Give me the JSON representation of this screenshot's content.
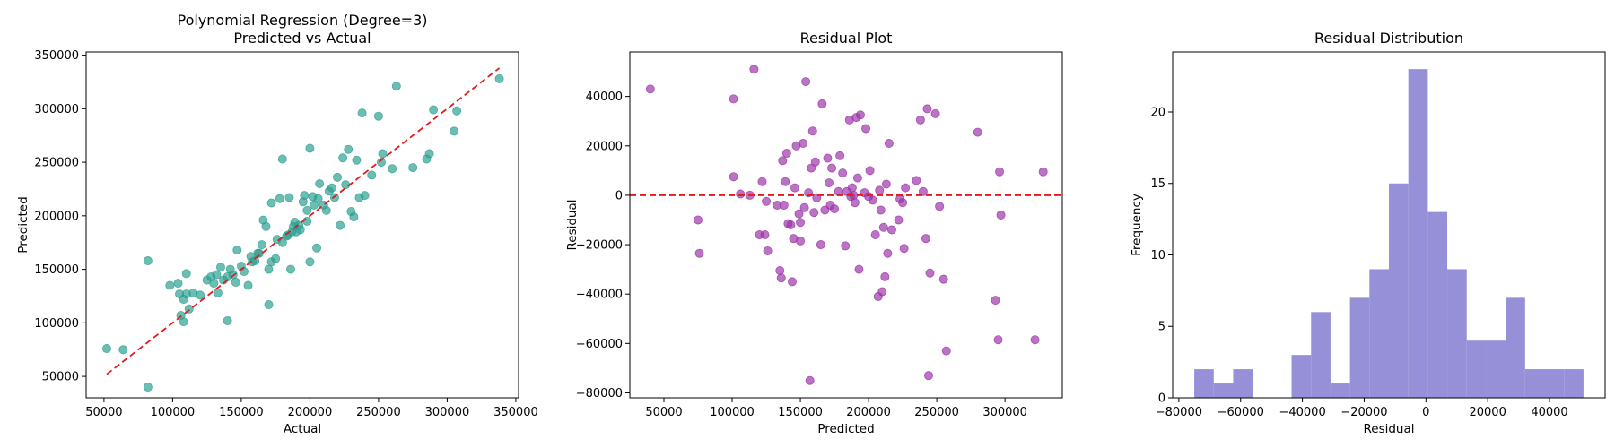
{
  "chart_data": [
    {
      "type": "scatter",
      "title": "Polynomial Regression (Degree=3)\nPredicted vs Actual",
      "xlabel": "Actual",
      "ylabel": "Predicted",
      "xlim": [
        37000,
        352000
      ],
      "ylim": [
        30000,
        353000
      ],
      "xticks": [
        50000,
        100000,
        150000,
        200000,
        250000,
        300000,
        350000
      ],
      "yticks": [
        50000,
        100000,
        150000,
        200000,
        250000,
        300000,
        350000
      ],
      "point_color": "#2a9d8f",
      "line_color": "#e31a1c",
      "reference_line": {
        "x": [
          52000,
          338000
        ],
        "y": [
          52000,
          338000
        ]
      },
      "points": [
        [
          52000,
          76000
        ],
        [
          64000,
          75000
        ],
        [
          82000,
          40000
        ],
        [
          82000,
          158000
        ],
        [
          98000,
          135000
        ],
        [
          104000,
          137000
        ],
        [
          105000,
          127000
        ],
        [
          106000,
          107000
        ],
        [
          108000,
          122000
        ],
        [
          108000,
          101000
        ],
        [
          110000,
          146000
        ],
        [
          110000,
          127000
        ],
        [
          112000,
          113000
        ],
        [
          115000,
          128000
        ],
        [
          120000,
          126000
        ],
        [
          125000,
          140000
        ],
        [
          128000,
          143000
        ],
        [
          130000,
          137000
        ],
        [
          132000,
          145000
        ],
        [
          133000,
          128000
        ],
        [
          135000,
          152000
        ],
        [
          137000,
          140000
        ],
        [
          140000,
          143000
        ],
        [
          140000,
          102000
        ],
        [
          142000,
          150000
        ],
        [
          144000,
          145000
        ],
        [
          146000,
          138000
        ],
        [
          147000,
          168000
        ],
        [
          150000,
          153000
        ],
        [
          152000,
          148000
        ],
        [
          155000,
          135000
        ],
        [
          157000,
          162000
        ],
        [
          158000,
          157000
        ],
        [
          160000,
          158000
        ],
        [
          162000,
          165000
        ],
        [
          163000,
          165000
        ],
        [
          165000,
          173000
        ],
        [
          166000,
          196000
        ],
        [
          168000,
          190000
        ],
        [
          170000,
          117000
        ],
        [
          170000,
          150000
        ],
        [
          172000,
          157000
        ],
        [
          172000,
          212000
        ],
        [
          175000,
          160000
        ],
        [
          176000,
          178000
        ],
        [
          178000,
          216000
        ],
        [
          180000,
          253000
        ],
        [
          180000,
          175000
        ],
        [
          183000,
          181000
        ],
        [
          184000,
          182000
        ],
        [
          185000,
          217000
        ],
        [
          186000,
          150000
        ],
        [
          187000,
          185000
        ],
        [
          188000,
          190000
        ],
        [
          189000,
          194000
        ],
        [
          190000,
          185000
        ],
        [
          192000,
          191000
        ],
        [
          193000,
          187000
        ],
        [
          195000,
          213000
        ],
        [
          196000,
          219000
        ],
        [
          198000,
          195000
        ],
        [
          198000,
          205000
        ],
        [
          200000,
          263000
        ],
        [
          200000,
          157000
        ],
        [
          202000,
          218000
        ],
        [
          203000,
          210000
        ],
        [
          205000,
          170000
        ],
        [
          206000,
          216000
        ],
        [
          207000,
          230000
        ],
        [
          210000,
          210000
        ],
        [
          212000,
          205000
        ],
        [
          214000,
          223000
        ],
        [
          216000,
          226000
        ],
        [
          218000,
          217000
        ],
        [
          220000,
          236000
        ],
        [
          222000,
          191000
        ],
        [
          224000,
          254000
        ],
        [
          226000,
          229000
        ],
        [
          228000,
          262000
        ],
        [
          230000,
          204000
        ],
        [
          232000,
          199000
        ],
        [
          234000,
          252000
        ],
        [
          236000,
          217000
        ],
        [
          238000,
          296000
        ],
        [
          240000,
          219000
        ],
        [
          245000,
          238000
        ],
        [
          250000,
          293000
        ],
        [
          252000,
          250000
        ],
        [
          253000,
          258000
        ],
        [
          260000,
          244000
        ],
        [
          263000,
          321000
        ],
        [
          275000,
          245000
        ],
        [
          285000,
          253000
        ],
        [
          287000,
          258000
        ],
        [
          290000,
          299000
        ],
        [
          305000,
          279000
        ],
        [
          307000,
          298000
        ],
        [
          338000,
          328000
        ]
      ]
    },
    {
      "type": "scatter",
      "title": "Residual Plot",
      "xlabel": "Predicted",
      "ylabel": "Residual",
      "xlim": [
        25000,
        342000
      ],
      "ylim": [
        -82000,
        58000
      ],
      "xticks": [
        50000,
        100000,
        150000,
        200000,
        250000,
        300000
      ],
      "yticks": [
        -80000,
        -60000,
        -40000,
        -20000,
        0,
        20000,
        40000
      ],
      "point_color": "#9b30a8",
      "line_color": "#e31a1c",
      "reference_line": {
        "y": 0
      },
      "points": [
        [
          40000,
          43000
        ],
        [
          75000,
          -10000
        ],
        [
          76000,
          -23500
        ],
        [
          101000,
          7500
        ],
        [
          101000,
          39000
        ],
        [
          106000,
          500
        ],
        [
          113000,
          0
        ],
        [
          116000,
          51000
        ],
        [
          120000,
          -16000
        ],
        [
          122000,
          5500
        ],
        [
          124000,
          -16000
        ],
        [
          125000,
          -2500
        ],
        [
          126000,
          -22500
        ],
        [
          133000,
          -4000
        ],
        [
          135000,
          -30500
        ],
        [
          136000,
          -33500
        ],
        [
          137000,
          14000
        ],
        [
          138000,
          -4000
        ],
        [
          139000,
          5500
        ],
        [
          140000,
          17000
        ],
        [
          141000,
          -11500
        ],
        [
          143000,
          -12000
        ],
        [
          144000,
          -35000
        ],
        [
          145000,
          -17500
        ],
        [
          146000,
          3000
        ],
        [
          147000,
          20000
        ],
        [
          149000,
          -7500
        ],
        [
          150000,
          -11000
        ],
        [
          150000,
          -18500
        ],
        [
          152000,
          21000
        ],
        [
          153000,
          -5000
        ],
        [
          154000,
          46000
        ],
        [
          156000,
          1000
        ],
        [
          157000,
          -75000
        ],
        [
          158000,
          11000
        ],
        [
          159000,
          26000
        ],
        [
          160000,
          -7000
        ],
        [
          161000,
          13500
        ],
        [
          162000,
          -1000
        ],
        [
          165000,
          -20000
        ],
        [
          166000,
          37000
        ],
        [
          168000,
          -6000
        ],
        [
          170000,
          15000
        ],
        [
          171000,
          5000
        ],
        [
          172000,
          -4000
        ],
        [
          173000,
          11000
        ],
        [
          175000,
          -5500
        ],
        [
          178000,
          1500
        ],
        [
          179000,
          16000
        ],
        [
          181000,
          9000
        ],
        [
          183000,
          -20500
        ],
        [
          184000,
          1500
        ],
        [
          186000,
          30500
        ],
        [
          187000,
          -500
        ],
        [
          188000,
          3000
        ],
        [
          189000,
          0
        ],
        [
          190000,
          -3000
        ],
        [
          191000,
          31500
        ],
        [
          192000,
          7000
        ],
        [
          193000,
          -30000
        ],
        [
          194000,
          32500
        ],
        [
          197000,
          1000
        ],
        [
          198000,
          27000
        ],
        [
          200000,
          -500
        ],
        [
          201000,
          10000
        ],
        [
          203000,
          -2000
        ],
        [
          205000,
          -16000
        ],
        [
          207000,
          -41000
        ],
        [
          208000,
          2000
        ],
        [
          209000,
          -6000
        ],
        [
          210000,
          -39000
        ],
        [
          211000,
          -13000
        ],
        [
          212000,
          -33000
        ],
        [
          213000,
          4500
        ],
        [
          214000,
          -23500
        ],
        [
          215000,
          21000
        ],
        [
          217000,
          -14000
        ],
        [
          222000,
          -10000
        ],
        [
          223000,
          -1500
        ],
        [
          225000,
          -3000
        ],
        [
          226000,
          -21500
        ],
        [
          227000,
          3000
        ],
        [
          235000,
          6000
        ],
        [
          238000,
          30500
        ],
        [
          240000,
          1500
        ],
        [
          242000,
          -17500
        ],
        [
          243000,
          35000
        ],
        [
          244000,
          -73000
        ],
        [
          245000,
          -31500
        ],
        [
          249000,
          33000
        ],
        [
          252000,
          -4500
        ],
        [
          255000,
          -34000
        ],
        [
          257000,
          -63000
        ],
        [
          280000,
          25500
        ],
        [
          293000,
          -42500
        ],
        [
          295000,
          -58500
        ],
        [
          296000,
          9500
        ],
        [
          297000,
          -8000
        ],
        [
          322000,
          -58500
        ],
        [
          328000,
          9500
        ]
      ]
    },
    {
      "type": "histogram",
      "title": "Residual Distribution",
      "xlabel": "Residual",
      "ylabel": "Frequency",
      "xlim": [
        -82000,
        58000
      ],
      "ylim": [
        0,
        24.2
      ],
      "xticks": [
        -80000,
        -60000,
        -40000,
        -20000,
        0,
        20000,
        40000
      ],
      "yticks": [
        0,
        5,
        10,
        15,
        20
      ],
      "bar_color": "#9590d8",
      "bin_start": -75000,
      "bin_width": 6300,
      "counts": [
        2,
        1,
        2,
        0,
        0,
        3,
        6,
        1,
        7,
        9,
        15,
        23,
        13,
        9,
        4,
        4,
        7,
        2,
        2,
        2
      ]
    }
  ]
}
